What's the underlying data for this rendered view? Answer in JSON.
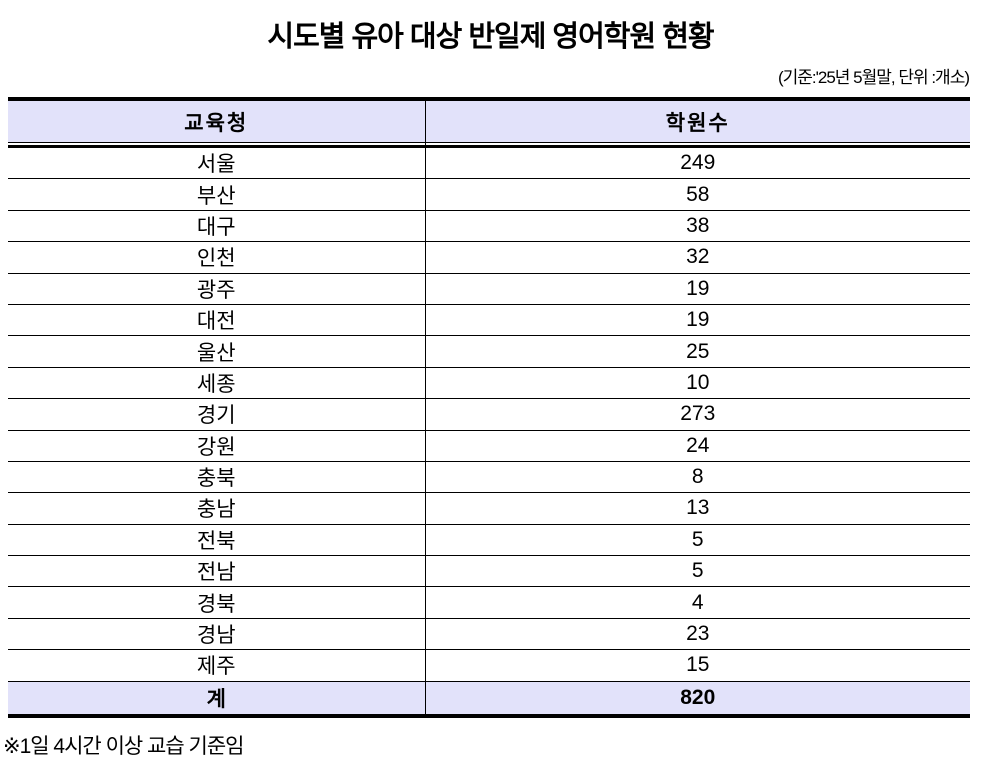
{
  "page": {
    "title": "시도별 유아 대상 반일제 영어학원 현황",
    "subtitle": "(기준:'25년 5월말, 단위 :개소)",
    "footnote": "※1일 4시간 이상 교습 기준임"
  },
  "table": {
    "columns": [
      "교육청",
      "학원수"
    ],
    "rows": [
      {
        "region": "서울",
        "count": "249"
      },
      {
        "region": "부산",
        "count": "58"
      },
      {
        "region": "대구",
        "count": "38"
      },
      {
        "region": "인천",
        "count": "32"
      },
      {
        "region": "광주",
        "count": "19"
      },
      {
        "region": "대전",
        "count": "19"
      },
      {
        "region": "울산",
        "count": "25"
      },
      {
        "region": "세종",
        "count": "10"
      },
      {
        "region": "경기",
        "count": "273"
      },
      {
        "region": "강원",
        "count": "24"
      },
      {
        "region": "충북",
        "count": "8"
      },
      {
        "region": "충남",
        "count": "13"
      },
      {
        "region": "전북",
        "count": "5"
      },
      {
        "region": "전남",
        "count": "5"
      },
      {
        "region": "경북",
        "count": "4"
      },
      {
        "region": "경남",
        "count": "23"
      },
      {
        "region": "제주",
        "count": "15"
      }
    ],
    "total": {
      "label": "계",
      "count": "820"
    }
  },
  "colors": {
    "header_bg": "#E2E2FA",
    "total_bg": "#E2E2FA",
    "border": "#000000",
    "text": "#000000"
  }
}
